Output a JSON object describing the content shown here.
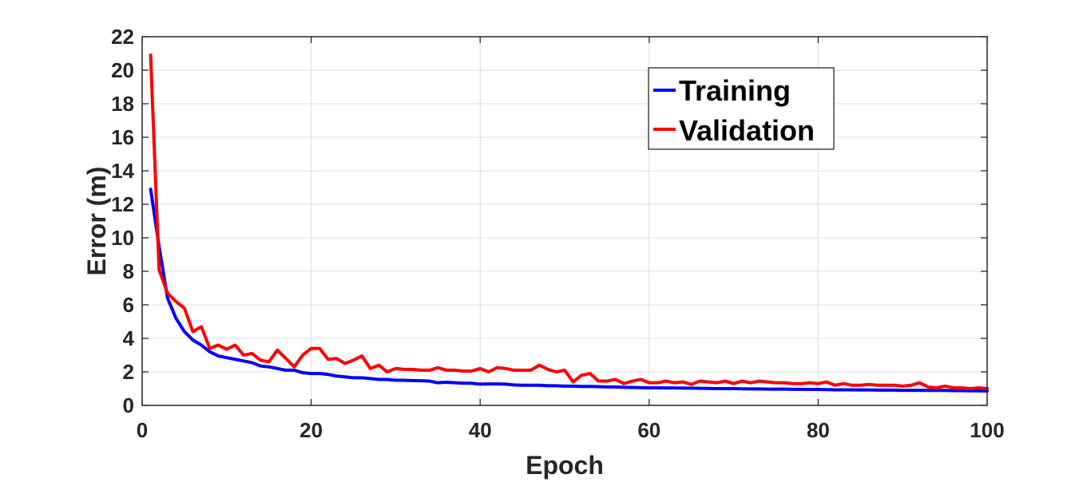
{
  "chart_data": {
    "type": "line",
    "title": "",
    "xlabel": "Epoch",
    "ylabel": "Error (m)",
    "xlim": [
      0,
      100
    ],
    "ylim": [
      0,
      22
    ],
    "xticks": [
      0,
      20,
      40,
      60,
      80,
      100
    ],
    "yticks": [
      0,
      2,
      4,
      6,
      8,
      10,
      12,
      14,
      16,
      18,
      20,
      22
    ],
    "grid": true,
    "legend_position": "top-right",
    "x": [
      1,
      2,
      3,
      4,
      5,
      6,
      7,
      8,
      9,
      10,
      11,
      12,
      13,
      14,
      15,
      16,
      17,
      18,
      19,
      20,
      21,
      22,
      23,
      24,
      25,
      26,
      27,
      28,
      29,
      30,
      31,
      32,
      33,
      34,
      35,
      36,
      37,
      38,
      39,
      40,
      41,
      42,
      43,
      44,
      45,
      46,
      47,
      48,
      49,
      50,
      51,
      52,
      53,
      54,
      55,
      56,
      57,
      58,
      59,
      60,
      61,
      62,
      63,
      64,
      65,
      66,
      67,
      68,
      69,
      70,
      71,
      72,
      73,
      74,
      75,
      76,
      77,
      78,
      79,
      80,
      81,
      82,
      83,
      84,
      85,
      86,
      87,
      88,
      89,
      90,
      91,
      92,
      93,
      94,
      95,
      96,
      97,
      98,
      99,
      100
    ],
    "series": [
      {
        "name": "Training",
        "color": "#0000ff",
        "values": [
          12.9,
          9.5,
          6.4,
          5.2,
          4.4,
          3.9,
          3.6,
          3.2,
          2.95,
          2.85,
          2.75,
          2.65,
          2.55,
          2.35,
          2.3,
          2.2,
          2.1,
          2.1,
          1.95,
          1.9,
          1.9,
          1.85,
          1.75,
          1.7,
          1.65,
          1.65,
          1.6,
          1.55,
          1.55,
          1.5,
          1.5,
          1.48,
          1.47,
          1.45,
          1.35,
          1.38,
          1.35,
          1.33,
          1.32,
          1.27,
          1.28,
          1.28,
          1.27,
          1.22,
          1.2,
          1.2,
          1.2,
          1.17,
          1.17,
          1.15,
          1.15,
          1.13,
          1.13,
          1.12,
          1.1,
          1.1,
          1.08,
          1.07,
          1.06,
          1.05,
          1.05,
          1.04,
          1.04,
          1.03,
          1.03,
          1.02,
          1.01,
          1.0,
          1.0,
          1.0,
          0.99,
          0.98,
          0.98,
          0.97,
          0.97,
          0.97,
          0.96,
          0.96,
          0.95,
          0.95,
          0.94,
          0.93,
          0.93,
          0.93,
          0.92,
          0.92,
          0.91,
          0.91,
          0.91,
          0.9,
          0.9,
          0.9,
          0.89,
          0.89,
          0.89,
          0.88,
          0.88,
          0.87,
          0.87,
          0.86
        ]
      },
      {
        "name": "Validation",
        "color": "#ff0000",
        "values": [
          20.9,
          8.1,
          6.7,
          6.2,
          5.8,
          4.4,
          4.7,
          3.4,
          3.6,
          3.35,
          3.6,
          3.0,
          3.1,
          2.7,
          2.6,
          3.3,
          2.8,
          2.3,
          3.0,
          3.4,
          3.4,
          2.75,
          2.8,
          2.5,
          2.7,
          2.95,
          2.2,
          2.4,
          2.0,
          2.2,
          2.15,
          2.15,
          2.1,
          2.1,
          2.25,
          2.1,
          2.1,
          2.05,
          2.05,
          2.2,
          2.0,
          2.25,
          2.2,
          2.1,
          2.1,
          2.1,
          2.4,
          2.15,
          2.0,
          2.1,
          1.4,
          1.8,
          1.9,
          1.45,
          1.45,
          1.55,
          1.3,
          1.45,
          1.55,
          1.35,
          1.35,
          1.45,
          1.35,
          1.4,
          1.25,
          1.45,
          1.4,
          1.35,
          1.45,
          1.3,
          1.45,
          1.35,
          1.45,
          1.4,
          1.35,
          1.35,
          1.3,
          1.3,
          1.35,
          1.3,
          1.4,
          1.2,
          1.3,
          1.2,
          1.2,
          1.25,
          1.2,
          1.2,
          1.2,
          1.15,
          1.2,
          1.35,
          1.1,
          1.05,
          1.15,
          1.05,
          1.05,
          1.0,
          1.05,
          1.0
        ]
      }
    ]
  }
}
